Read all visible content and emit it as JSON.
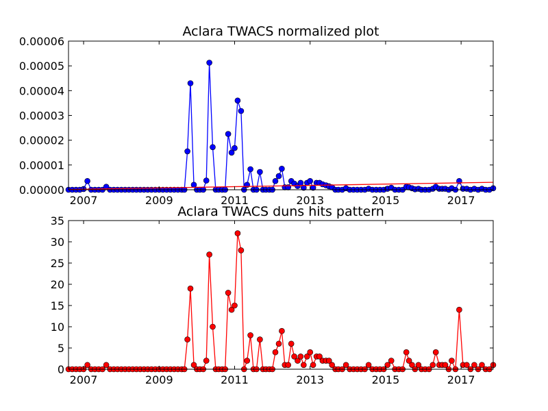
{
  "chart_data": [
    {
      "type": "line",
      "title": "Aclara TWACS normalized plot",
      "xlabel": "",
      "ylabel": "",
      "xlim": [
        2006.6,
        2017.85
      ],
      "ylim": [
        0,
        6e-05
      ],
      "x_ticks": [
        "2007",
        "2009",
        "2011",
        "2013",
        "2015",
        "2017"
      ],
      "y_ticks": [
        "0.00000",
        "0.00001",
        "0.00002",
        "0.00003",
        "0.00004",
        "0.00005",
        "0.00006"
      ],
      "grid": false,
      "legend": "none",
      "series": [
        {
          "marker": "circle",
          "color": "#0000ff",
          "x": [
            2006.6,
            2006.7,
            2006.8,
            2006.9,
            2007.0,
            2007.1,
            2007.2,
            2007.3,
            2007.4,
            2007.5,
            2007.6,
            2007.7,
            2007.8,
            2007.9,
            2008.0,
            2008.1,
            2008.2,
            2008.3,
            2008.4,
            2008.5,
            2008.6,
            2008.7,
            2008.8,
            2008.9,
            2009.0,
            2009.1,
            2009.2,
            2009.3,
            2009.4,
            2009.5,
            2009.6,
            2009.67,
            2009.75,
            2009.83,
            2009.92,
            2010.0,
            2010.08,
            2010.17,
            2010.25,
            2010.33,
            2010.42,
            2010.5,
            2010.58,
            2010.67,
            2010.75,
            2010.83,
            2010.92,
            2011.0,
            2011.08,
            2011.17,
            2011.25,
            2011.33,
            2011.42,
            2011.5,
            2011.58,
            2011.67,
            2011.75,
            2011.83,
            2011.92,
            2012.0,
            2012.08,
            2012.17,
            2012.25,
            2012.33,
            2012.42,
            2012.5,
            2012.58,
            2012.67,
            2012.75,
            2012.83,
            2012.92,
            2013.0,
            2013.08,
            2013.17,
            2013.25,
            2013.33,
            2013.42,
            2013.5,
            2013.58,
            2013.67,
            2013.75,
            2013.85,
            2013.95,
            2014.05,
            2014.15,
            2014.25,
            2014.35,
            2014.45,
            2014.55,
            2014.65,
            2014.75,
            2014.85,
            2014.95,
            2015.05,
            2015.15,
            2015.25,
            2015.35,
            2015.45,
            2015.55,
            2015.62,
            2015.7,
            2015.78,
            2015.87,
            2015.95,
            2016.05,
            2016.15,
            2016.25,
            2016.33,
            2016.42,
            2016.5,
            2016.58,
            2016.67,
            2016.75,
            2016.85,
            2016.95,
            2017.05,
            2017.15,
            2017.25,
            2017.35,
            2017.45,
            2017.55,
            2017.65,
            2017.75,
            2017.85
          ],
          "y": [
            0,
            0,
            0,
            0,
            3e-07,
            3.5e-06,
            0,
            0,
            0,
            0,
            1.2e-06,
            0,
            0,
            0,
            0,
            0,
            0,
            0,
            0,
            0,
            0,
            0,
            0,
            0,
            0,
            0,
            0,
            0,
            0,
            0,
            0,
            0,
            1.55e-05,
            4.3e-05,
            2e-06,
            0,
            0,
            0,
            3.7e-06,
            5.13e-05,
            1.72e-05,
            0,
            0,
            0,
            0,
            2.25e-05,
            1.5e-05,
            1.68e-05,
            3.6e-05,
            3.18e-05,
            0,
            2e-06,
            8.3e-06,
            0,
            0,
            7.2e-06,
            0,
            0,
            0,
            0,
            3.5e-06,
            5.5e-06,
            8.5e-06,
            1e-06,
            1e-06,
            3.5e-06,
            2.5e-06,
            1.5e-06,
            2.8e-06,
            8e-07,
            2.8e-06,
            3.5e-06,
            8e-07,
            2.8e-06,
            2.8e-06,
            2.2e-06,
            1.8e-06,
            1.4e-06,
            1e-06,
            0,
            0,
            0,
            6e-07,
            0,
            0,
            0,
            0,
            0,
            4e-07,
            0,
            0,
            0,
            0,
            4e-07,
            8e-07,
            0,
            0,
            0,
            1.2e-06,
            1e-06,
            6e-07,
            2e-07,
            4e-07,
            0,
            0,
            0,
            4e-07,
            1.2e-06,
            4e-07,
            4e-07,
            4e-07,
            0,
            6e-07,
            0,
            3.5e-06,
            4e-07,
            4e-07,
            0,
            4e-07,
            0,
            4e-07,
            0,
            0,
            6e-07
          ]
        },
        {
          "marker": "none",
          "color": "#ff0000",
          "x": [
            2006.6,
            2017.85
          ],
          "y": [
            1e-07,
            3e-06
          ]
        }
      ]
    },
    {
      "type": "line",
      "title": "Aclara TWACS duns hits pattern",
      "xlabel": "",
      "ylabel": "",
      "xlim": [
        2006.6,
        2017.85
      ],
      "ylim": [
        0,
        35
      ],
      "x_ticks": [
        "2007",
        "2009",
        "2011",
        "2013",
        "2015",
        "2017"
      ],
      "y_ticks": [
        "0",
        "5",
        "10",
        "15",
        "20",
        "25",
        "30",
        "35"
      ],
      "grid": false,
      "legend": "none",
      "series": [
        {
          "marker": "circle",
          "color": "#ff0000",
          "x": [
            2006.6,
            2006.7,
            2006.8,
            2006.9,
            2007.0,
            2007.1,
            2007.2,
            2007.3,
            2007.4,
            2007.5,
            2007.6,
            2007.7,
            2007.8,
            2007.9,
            2008.0,
            2008.1,
            2008.2,
            2008.3,
            2008.4,
            2008.5,
            2008.6,
            2008.7,
            2008.8,
            2008.9,
            2009.0,
            2009.1,
            2009.2,
            2009.3,
            2009.4,
            2009.5,
            2009.6,
            2009.67,
            2009.75,
            2009.83,
            2009.92,
            2010.0,
            2010.08,
            2010.17,
            2010.25,
            2010.33,
            2010.42,
            2010.5,
            2010.58,
            2010.67,
            2010.75,
            2010.83,
            2010.92,
            2011.0,
            2011.08,
            2011.17,
            2011.25,
            2011.33,
            2011.42,
            2011.5,
            2011.58,
            2011.67,
            2011.75,
            2011.83,
            2011.92,
            2012.0,
            2012.08,
            2012.17,
            2012.25,
            2012.33,
            2012.42,
            2012.5,
            2012.58,
            2012.67,
            2012.75,
            2012.83,
            2012.92,
            2013.0,
            2013.08,
            2013.17,
            2013.25,
            2013.33,
            2013.42,
            2013.5,
            2013.58,
            2013.67,
            2013.75,
            2013.85,
            2013.95,
            2014.05,
            2014.15,
            2014.25,
            2014.35,
            2014.45,
            2014.55,
            2014.65,
            2014.75,
            2014.85,
            2014.95,
            2015.05,
            2015.15,
            2015.25,
            2015.35,
            2015.45,
            2015.55,
            2015.62,
            2015.7,
            2015.78,
            2015.87,
            2015.95,
            2016.05,
            2016.15,
            2016.25,
            2016.33,
            2016.42,
            2016.5,
            2016.58,
            2016.67,
            2016.75,
            2016.85,
            2016.95,
            2017.05,
            2017.15,
            2017.25,
            2017.35,
            2017.45,
            2017.55,
            2017.65,
            2017.75,
            2017.85
          ],
          "y": [
            0,
            0,
            0,
            0,
            0,
            1,
            0,
            0,
            0,
            0,
            1,
            0,
            0,
            0,
            0,
            0,
            0,
            0,
            0,
            0,
            0,
            0,
            0,
            0,
            0,
            0,
            0,
            0,
            0,
            0,
            0,
            0,
            7,
            19,
            1,
            0,
            0,
            0,
            2,
            27,
            10,
            0,
            0,
            0,
            0,
            18,
            14,
            15,
            32,
            28,
            0,
            2,
            8,
            0,
            0,
            7,
            0,
            0,
            0,
            0,
            4,
            6,
            9,
            1,
            1,
            6,
            3,
            2,
            3,
            1,
            3,
            4,
            1,
            3,
            3,
            2,
            2,
            2,
            1,
            0,
            0,
            0,
            1,
            0,
            0,
            0,
            0,
            0,
            1,
            0,
            0,
            0,
            0,
            1,
            2,
            0,
            0,
            0,
            4,
            2,
            1,
            0,
            1,
            0,
            0,
            0,
            1,
            4,
            1,
            1,
            1,
            0,
            2,
            0,
            14,
            1,
            1,
            0,
            1,
            0,
            1,
            0,
            0,
            1
          ]
        }
      ]
    }
  ]
}
